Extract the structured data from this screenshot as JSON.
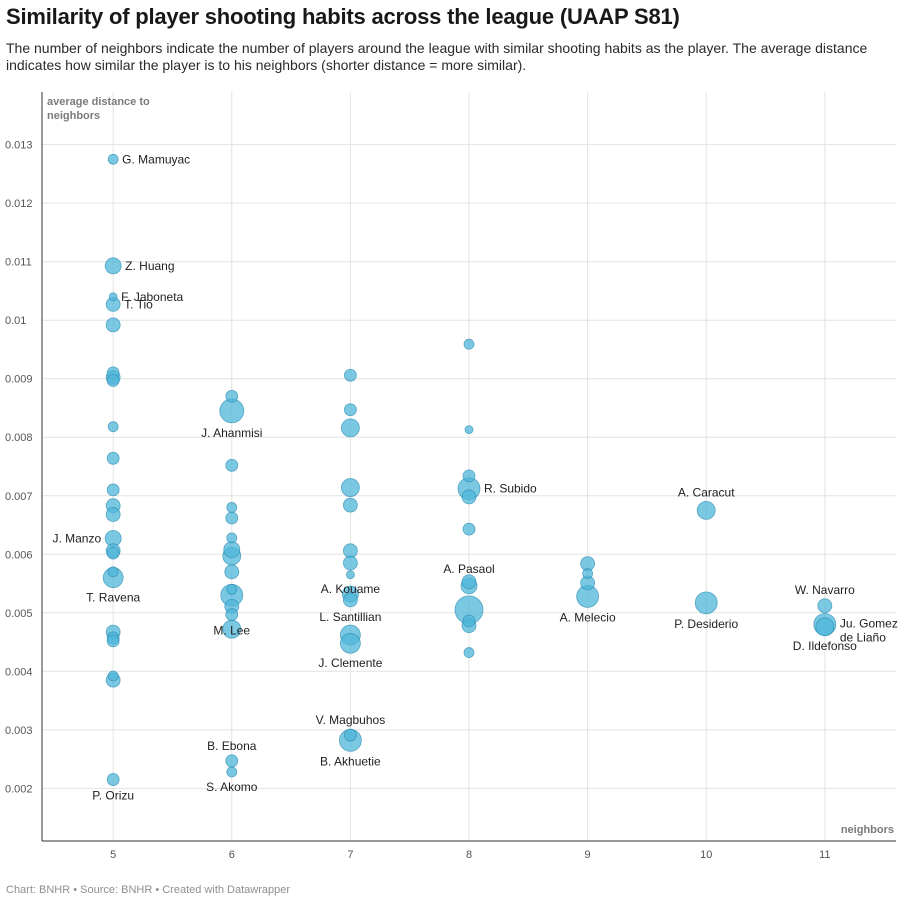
{
  "title": "Similarity of player shooting habits across the league (UAAP S81)",
  "subtitle": "The number of neighbors indicate the number of players around the league with similar shooting habits as the player. The average distance indicates how similar the player is to his neighbors (shorter distance = more similar).",
  "footer": "Chart: BNHR • Source: BNHR • Created with Datawrapper",
  "chart_data": {
    "type": "scatter",
    "xlabel": "neighbors",
    "ylabel": "average distance to neighbors",
    "xlim": [
      4.4,
      11.6
    ],
    "ylim": [
      0.0011,
      0.0139
    ],
    "xticks": [
      5,
      6,
      7,
      8,
      9,
      10,
      11
    ],
    "yticks": [
      0.002,
      0.003,
      0.004,
      0.005,
      0.006,
      0.007,
      0.008,
      0.009,
      0.01,
      0.011,
      0.012,
      0.013
    ],
    "ytick_labels": [
      "0.002",
      "0.003",
      "0.004",
      "0.005",
      "0.006",
      "0.007",
      "0.008",
      "0.009",
      "0.01",
      "0.011",
      "0.012",
      "0.013"
    ],
    "grid": true,
    "point_color": "#4fb5da",
    "points": [
      {
        "x": 5,
        "y": 0.01275,
        "s": 5,
        "label": "G. Mamuyac",
        "lp": "right"
      },
      {
        "x": 5,
        "y": 0.01093,
        "s": 8,
        "label": "Z. Huang",
        "lp": "right"
      },
      {
        "x": 5,
        "y": 0.0104,
        "s": 4,
        "label": "F. Jaboneta",
        "lp": "right"
      },
      {
        "x": 5,
        "y": 0.01027,
        "s": 7,
        "label": "T. Tio",
        "lp": "right"
      },
      {
        "x": 5,
        "y": 0.00992,
        "s": 7,
        "label": "",
        "lp": "none"
      },
      {
        "x": 5,
        "y": 0.0091,
        "s": 6,
        "label": "",
        "lp": "none"
      },
      {
        "x": 5,
        "y": 0.00902,
        "s": 7,
        "label": "",
        "lp": "none"
      },
      {
        "x": 5,
        "y": 0.00897,
        "s": 6,
        "label": "",
        "lp": "none"
      },
      {
        "x": 5,
        "y": 0.00818,
        "s": 5,
        "label": "",
        "lp": "none"
      },
      {
        "x": 5,
        "y": 0.00764,
        "s": 6,
        "label": "",
        "lp": "none"
      },
      {
        "x": 5,
        "y": 0.0071,
        "s": 6,
        "label": "",
        "lp": "none"
      },
      {
        "x": 5,
        "y": 0.00683,
        "s": 7,
        "label": "",
        "lp": "none"
      },
      {
        "x": 5,
        "y": 0.00668,
        "s": 7,
        "label": "",
        "lp": "none"
      },
      {
        "x": 5,
        "y": 0.00627,
        "s": 8,
        "label": "J. Manzo",
        "lp": "left"
      },
      {
        "x": 5,
        "y": 0.00606,
        "s": 7,
        "label": "",
        "lp": "none"
      },
      {
        "x": 5,
        "y": 0.00602,
        "s": 6,
        "label": "",
        "lp": "none"
      },
      {
        "x": 5,
        "y": 0.0057,
        "s": 5,
        "label": "",
        "lp": "none"
      },
      {
        "x": 5,
        "y": 0.0056,
        "s": 10,
        "label": "T. Ravena",
        "lp": "below"
      },
      {
        "x": 5,
        "y": 0.00467,
        "s": 7,
        "label": "",
        "lp": "none"
      },
      {
        "x": 5,
        "y": 0.00457,
        "s": 6,
        "label": "",
        "lp": "none"
      },
      {
        "x": 5,
        "y": 0.00452,
        "s": 6,
        "label": "",
        "lp": "none"
      },
      {
        "x": 5,
        "y": 0.00392,
        "s": 5,
        "label": "",
        "lp": "none"
      },
      {
        "x": 5,
        "y": 0.00385,
        "s": 7,
        "label": "",
        "lp": "none"
      },
      {
        "x": 5,
        "y": 0.00215,
        "s": 6,
        "label": "P. Orizu",
        "lp": "below"
      },
      {
        "x": 6,
        "y": 0.0087,
        "s": 6,
        "label": "",
        "lp": "none"
      },
      {
        "x": 6,
        "y": 0.00845,
        "s": 12,
        "label": "J. Ahanmisi",
        "lp": "below"
      },
      {
        "x": 6,
        "y": 0.00752,
        "s": 6,
        "label": "",
        "lp": "none"
      },
      {
        "x": 6,
        "y": 0.0068,
        "s": 5,
        "label": "",
        "lp": "none"
      },
      {
        "x": 6,
        "y": 0.00662,
        "s": 6,
        "label": "",
        "lp": "none"
      },
      {
        "x": 6,
        "y": 0.00628,
        "s": 5,
        "label": "",
        "lp": "none"
      },
      {
        "x": 6,
        "y": 0.00608,
        "s": 8,
        "label": "",
        "lp": "none"
      },
      {
        "x": 6,
        "y": 0.00597,
        "s": 9,
        "label": "",
        "lp": "none"
      },
      {
        "x": 6,
        "y": 0.0057,
        "s": 7,
        "label": "",
        "lp": "none"
      },
      {
        "x": 6,
        "y": 0.0054,
        "s": 5,
        "label": "",
        "lp": "none"
      },
      {
        "x": 6,
        "y": 0.0053,
        "s": 11,
        "label": "",
        "lp": "none"
      },
      {
        "x": 6,
        "y": 0.00511,
        "s": 7,
        "label": "",
        "lp": "none"
      },
      {
        "x": 6,
        "y": 0.00497,
        "s": 6,
        "label": "M. Lee",
        "lp": "below"
      },
      {
        "x": 6,
        "y": 0.00472,
        "s": 9,
        "label": "",
        "lp": "none"
      },
      {
        "x": 6,
        "y": 0.00247,
        "s": 6,
        "label": "B. Ebona",
        "lp": "above"
      },
      {
        "x": 6,
        "y": 0.00228,
        "s": 5,
        "label": "S. Akomo",
        "lp": "below"
      },
      {
        "x": 7,
        "y": 0.00906,
        "s": 6,
        "label": "",
        "lp": "none"
      },
      {
        "x": 7,
        "y": 0.00847,
        "s": 6,
        "label": "",
        "lp": "none"
      },
      {
        "x": 7,
        "y": 0.00816,
        "s": 9,
        "label": "",
        "lp": "none"
      },
      {
        "x": 7,
        "y": 0.00714,
        "s": 9,
        "label": "",
        "lp": "none"
      },
      {
        "x": 7,
        "y": 0.00684,
        "s": 7,
        "label": "",
        "lp": "none"
      },
      {
        "x": 7,
        "y": 0.00606,
        "s": 7,
        "label": "",
        "lp": "none"
      },
      {
        "x": 7,
        "y": 0.00585,
        "s": 7,
        "label": "",
        "lp": "none"
      },
      {
        "x": 7,
        "y": 0.00565,
        "s": 4,
        "label": "A. Kouame",
        "lp": "below"
      },
      {
        "x": 7,
        "y": 0.00532,
        "s": 8,
        "label": "",
        "lp": "none"
      },
      {
        "x": 7,
        "y": 0.00522,
        "s": 7,
        "label": "L. Santillian",
        "lp": "below"
      },
      {
        "x": 7,
        "y": 0.00462,
        "s": 10,
        "label": "",
        "lp": "none"
      },
      {
        "x": 7,
        "y": 0.00448,
        "s": 10,
        "label": "J. Clemente",
        "lp": "below"
      },
      {
        "x": 7,
        "y": 0.00291,
        "s": 6,
        "label": "V. Magbuhos",
        "lp": "above"
      },
      {
        "x": 7,
        "y": 0.00282,
        "s": 11,
        "label": "B. Akhuetie",
        "lp": "below"
      },
      {
        "x": 8,
        "y": 0.00959,
        "s": 5,
        "label": "",
        "lp": "none"
      },
      {
        "x": 8,
        "y": 0.00813,
        "s": 4,
        "label": "",
        "lp": "none"
      },
      {
        "x": 8,
        "y": 0.00734,
        "s": 6,
        "label": "",
        "lp": "none"
      },
      {
        "x": 8,
        "y": 0.00712,
        "s": 11,
        "label": "R. Subido",
        "lp": "right"
      },
      {
        "x": 8,
        "y": 0.00698,
        "s": 7,
        "label": "",
        "lp": "none"
      },
      {
        "x": 8,
        "y": 0.00643,
        "s": 6,
        "label": "",
        "lp": "none"
      },
      {
        "x": 8,
        "y": 0.00553,
        "s": 7,
        "label": "",
        "lp": "none"
      },
      {
        "x": 8,
        "y": 0.00546,
        "s": 8,
        "label": "A. Pasaol",
        "lp": "above"
      },
      {
        "x": 8,
        "y": 0.00505,
        "s": 14,
        "label": "",
        "lp": "none"
      },
      {
        "x": 8,
        "y": 0.00486,
        "s": 6,
        "label": "",
        "lp": "none"
      },
      {
        "x": 8,
        "y": 0.00478,
        "s": 7,
        "label": "",
        "lp": "none"
      },
      {
        "x": 8,
        "y": 0.00432,
        "s": 5,
        "label": "",
        "lp": "none"
      },
      {
        "x": 9,
        "y": 0.00584,
        "s": 7,
        "label": "",
        "lp": "none"
      },
      {
        "x": 9,
        "y": 0.00567,
        "s": 5,
        "label": "",
        "lp": "none"
      },
      {
        "x": 9,
        "y": 0.00551,
        "s": 7,
        "label": "",
        "lp": "none"
      },
      {
        "x": 9,
        "y": 0.00528,
        "s": 11,
        "label": "A. Melecio",
        "lp": "below"
      },
      {
        "x": 10,
        "y": 0.00675,
        "s": 9,
        "label": "A. Caracut",
        "lp": "above"
      },
      {
        "x": 10,
        "y": 0.00517,
        "s": 11,
        "label": "P. Desiderio",
        "lp": "below"
      },
      {
        "x": 11,
        "y": 0.00512,
        "s": 7,
        "label": "W. Navarro",
        "lp": "above"
      },
      {
        "x": 11,
        "y": 0.0048,
        "s": 11,
        "label": "Ju. Gomez de Liaño",
        "lp": "right2"
      },
      {
        "x": 11,
        "y": 0.00476,
        "s": 9,
        "label": "D. Ildefonso",
        "lp": "below"
      }
    ]
  }
}
